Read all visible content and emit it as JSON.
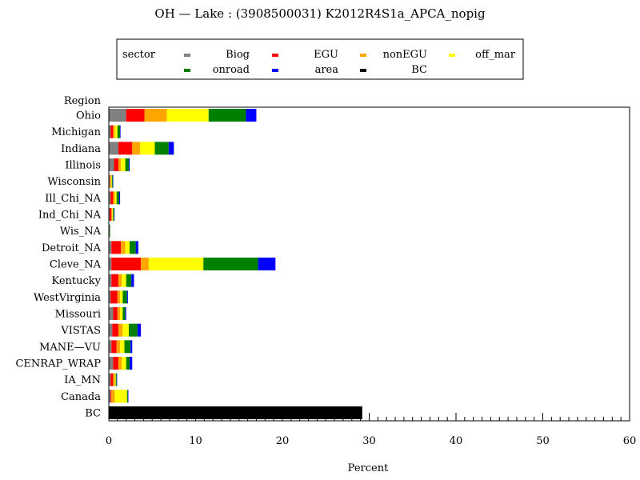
{
  "chart_data": {
    "type": "bar",
    "orientation": "horizontal",
    "stacked": true,
    "title": "OH  —  Lake : (3908500031) K2012R4S1a_APCA_nopig",
    "xlabel": "Percent",
    "ylabel": "Region",
    "xlim": [
      0,
      60
    ],
    "xticks": [
      0,
      10,
      20,
      30,
      40,
      50,
      60
    ],
    "grid": false,
    "legend": {
      "title": "sector",
      "placement": "top"
    },
    "categories": [
      "Ohio",
      "Michigan",
      "Indiana",
      "Illinois",
      "Wisconsin",
      "Ill_Chi_NA",
      "Ind_Chi_NA",
      "Wis_NA",
      "Detroit_NA",
      "Cleve_NA",
      "Kentucky",
      "WestVirginia",
      "Missouri",
      "VISTAS",
      "MANE—VU",
      "CENRAP_WRAP",
      "IA_MN",
      "Canada",
      "BC"
    ],
    "series": [
      {
        "name": "Biog",
        "color": "#808080",
        "values": [
          2.0,
          0.2,
          1.1,
          0.6,
          0.1,
          0.2,
          0.1,
          0.1,
          0.3,
          0.3,
          0.3,
          0.2,
          0.5,
          0.4,
          0.3,
          0.5,
          0.2,
          0.2,
          0
        ]
      },
      {
        "name": "EGU",
        "color": "#ff0000",
        "values": [
          2.1,
          0.3,
          1.6,
          0.5,
          0.05,
          0.3,
          0.2,
          0,
          1.1,
          3.4,
          0.8,
          0.8,
          0.5,
          0.7,
          0.6,
          0.6,
          0.3,
          0.1,
          0
        ]
      },
      {
        "name": "nonEGU",
        "color": "#ffa500",
        "values": [
          2.6,
          0.2,
          0.9,
          0.3,
          0.1,
          0.2,
          0.1,
          0,
          0.5,
          0.9,
          0.4,
          0.3,
          0.3,
          0.5,
          0.4,
          0.4,
          0.2,
          0.4,
          0
        ]
      },
      {
        "name": "off_mar",
        "color": "#ffff00",
        "values": [
          4.8,
          0.3,
          1.7,
          0.5,
          0.1,
          0.2,
          0.1,
          0,
          0.5,
          6.3,
          0.5,
          0.3,
          0.3,
          0.7,
          0.5,
          0.5,
          0.1,
          1.4,
          0
        ]
      },
      {
        "name": "onroad",
        "color": "#008000",
        "values": [
          4.3,
          0.3,
          1.6,
          0.4,
          0.1,
          0.3,
          0.1,
          0.05,
          0.7,
          6.3,
          0.6,
          0.5,
          0.3,
          1.0,
          0.7,
          0.4,
          0.1,
          0.1,
          0
        ]
      },
      {
        "name": "area",
        "color": "#0000ff",
        "values": [
          1.2,
          0.05,
          0.6,
          0.1,
          0.05,
          0.1,
          0.05,
          0,
          0.3,
          2.0,
          0.3,
          0.1,
          0.1,
          0.4,
          0.2,
          0.3,
          0.05,
          0.05,
          0
        ]
      },
      {
        "name": "BC",
        "color": "#000000",
        "values": [
          0,
          0,
          0,
          0,
          0,
          0,
          0,
          0,
          0,
          0,
          0,
          0,
          0,
          0,
          0,
          0,
          0,
          0,
          29.2
        ]
      }
    ]
  }
}
